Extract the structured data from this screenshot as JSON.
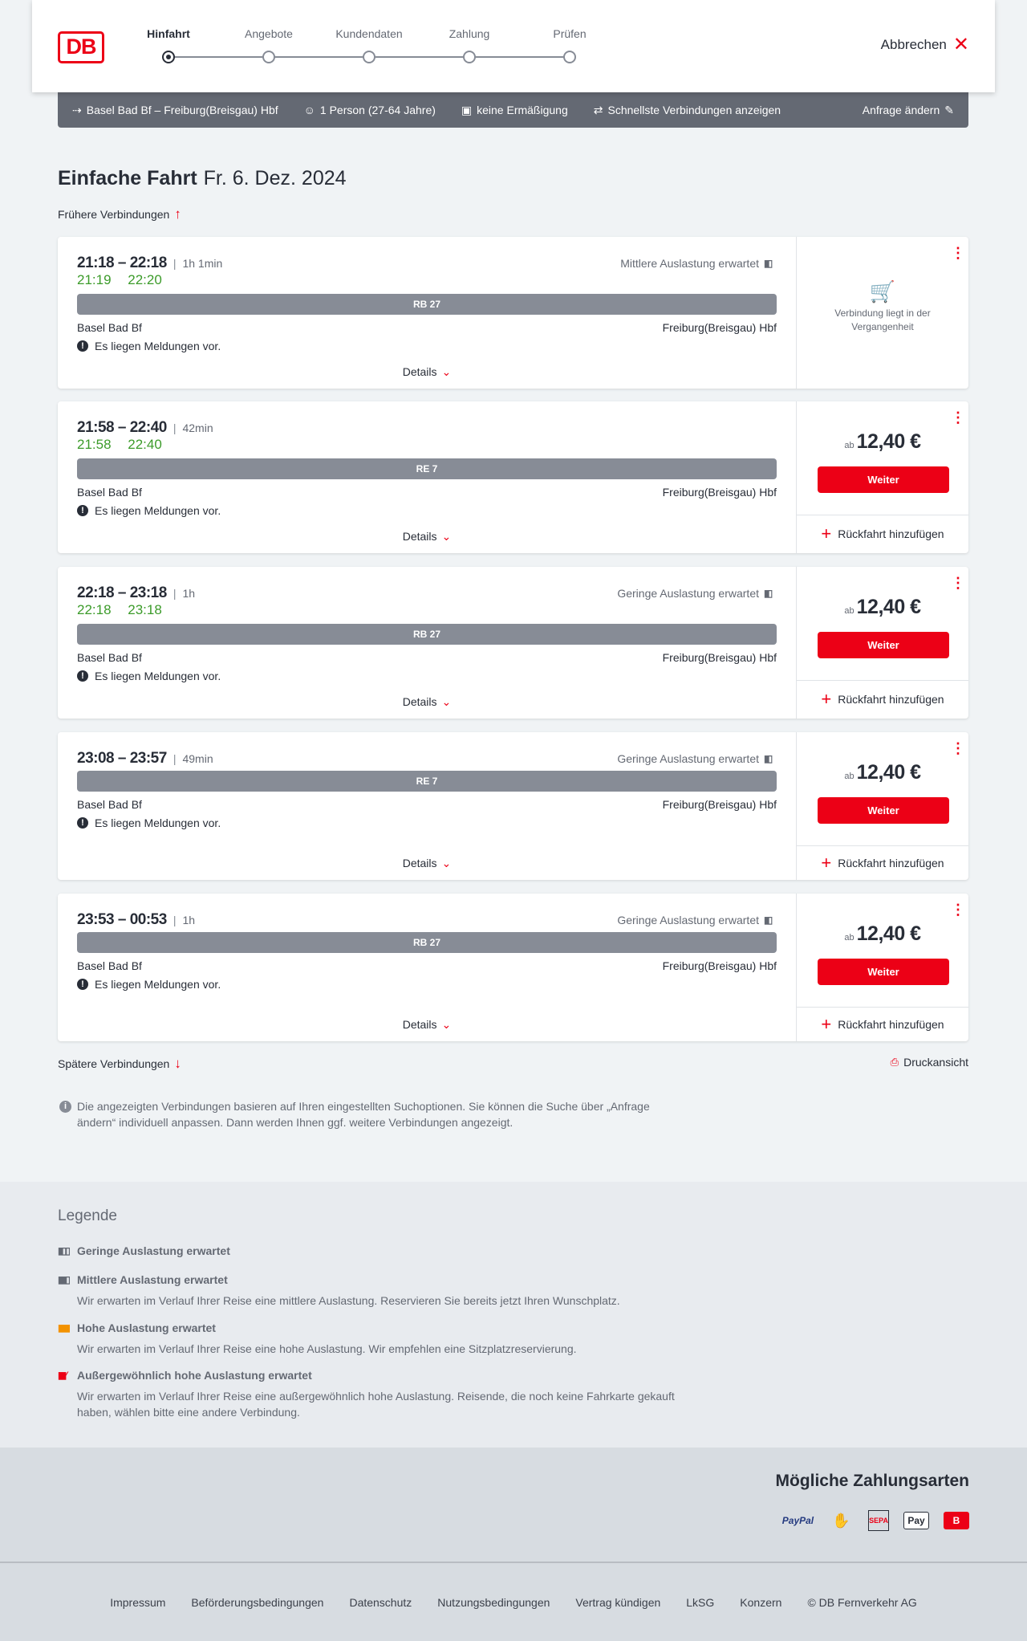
{
  "header": {
    "logo": "DB",
    "steps": [
      "Hinfahrt",
      "Angebote",
      "Kundendaten",
      "Zahlung",
      "Prüfen"
    ],
    "active_step": 0,
    "cancel_label": "Abbrechen"
  },
  "summary": {
    "route": "Basel Bad Bf – Freiburg(Breisgau) Hbf",
    "passengers": "1 Person (27-64 Jahre)",
    "discount": "keine Ermäßigung",
    "filter": "Schnellste Verbindungen anzeigen",
    "change_label": "Anfrage ändern"
  },
  "page": {
    "title": "Einfache Fahrt",
    "date": "Fr. 6. Dez. 2024",
    "earlier": "Frühere Verbindungen",
    "later": "Spätere Verbindungen",
    "print": "Druckansicht",
    "info": "Die angezeigten Verbindungen basieren auf Ihren eingestellten Suchoptionen. Sie können die Suche über „Anfrage ändern“ individuell anpassen. Dann werden Ihnen ggf. weitere Verbindungen angezeigt."
  },
  "labels": {
    "details": "Details",
    "message": "Es liegen Meldungen vor.",
    "weiter": "Weiter",
    "ab": "ab",
    "return": "Rückfahrt hinzufügen",
    "past": "Verbindung liegt in der Vergangenheit"
  },
  "connections": [
    {
      "time": "21:18 – 22:18",
      "duration": "1h 1min",
      "realtime": "21:19 22:20",
      "load": "Mittlere Auslastung erwartet",
      "train": "RB 27",
      "from": "Basel Bad Bf",
      "to": "Freiburg(Breisgau) Hbf",
      "past": true,
      "price": ""
    },
    {
      "time": "21:58 – 22:40",
      "duration": "42min",
      "realtime": "21:58 22:40",
      "load": "",
      "train": "RE 7",
      "from": "Basel Bad Bf",
      "to": "Freiburg(Breisgau) Hbf",
      "past": false,
      "price": "12,40 €"
    },
    {
      "time": "22:18 – 23:18",
      "duration": "1h",
      "realtime": "22:18 23:18",
      "load": "Geringe Auslastung erwartet",
      "train": "RB 27",
      "from": "Basel Bad Bf",
      "to": "Freiburg(Breisgau) Hbf",
      "past": false,
      "price": "12,40 €"
    },
    {
      "time": "23:08 – 23:57",
      "duration": "49min",
      "realtime": "",
      "load": "Geringe Auslastung erwartet",
      "train": "RE 7",
      "from": "Basel Bad Bf",
      "to": "Freiburg(Breisgau) Hbf",
      "past": false,
      "price": "12,40 €"
    },
    {
      "time": "23:53 – 00:53",
      "duration": "1h",
      "realtime": "",
      "load": "Geringe Auslastung erwartet",
      "train": "RB 27",
      "from": "Basel Bad Bf",
      "to": "Freiburg(Breisgau) Hbf",
      "past": false,
      "price": "12,40 €"
    }
  ],
  "legend": {
    "title": "Legende",
    "items": [
      {
        "title": "Geringe Auslastung erwartet",
        "desc": "",
        "icon": "load-low-icon",
        "color": "#646973"
      },
      {
        "title": "Mittlere Auslastung erwartet",
        "desc": "Wir erwarten im Verlauf Ihrer Reise eine mittlere Auslastung. Reservieren Sie bereits jetzt Ihren Wunschplatz.",
        "icon": "load-medium-icon",
        "color": "#646973"
      },
      {
        "title": "Hohe Auslastung erwartet",
        "desc": "Wir erwarten im Verlauf Ihrer Reise eine hohe Auslastung. Wir empfehlen eine Sitzplatzreservierung.",
        "icon": "load-high-icon",
        "color": "#f39200"
      },
      {
        "title": "Außergewöhnlich hohe Auslastung erwartet",
        "desc": "Wir erwarten im Verlauf Ihrer Reise eine außergewöhnlich hohe Auslastung. Reisende, die noch keine Fahrkarte gekauft haben, wählen bitte eine andere Verbindung.",
        "icon": "load-extreme-icon",
        "color": "#ec0016"
      }
    ]
  },
  "payment": {
    "title": "Mögliche Zahlungsarten",
    "methods": [
      "PayPal",
      "Kreditkarte",
      "SEPA",
      "Pay",
      "B"
    ]
  },
  "footer": {
    "links": [
      "Impressum",
      "Beförderungsbedingungen",
      "Datenschutz",
      "Nutzungsbedingungen",
      "Vertrag kündigen",
      "LkSG",
      "Konzern",
      "© DB Fernverkehr AG"
    ]
  },
  "colors": {
    "brand": "#ec0016",
    "realtime": "#3c9b2a",
    "bar": "#646973"
  }
}
